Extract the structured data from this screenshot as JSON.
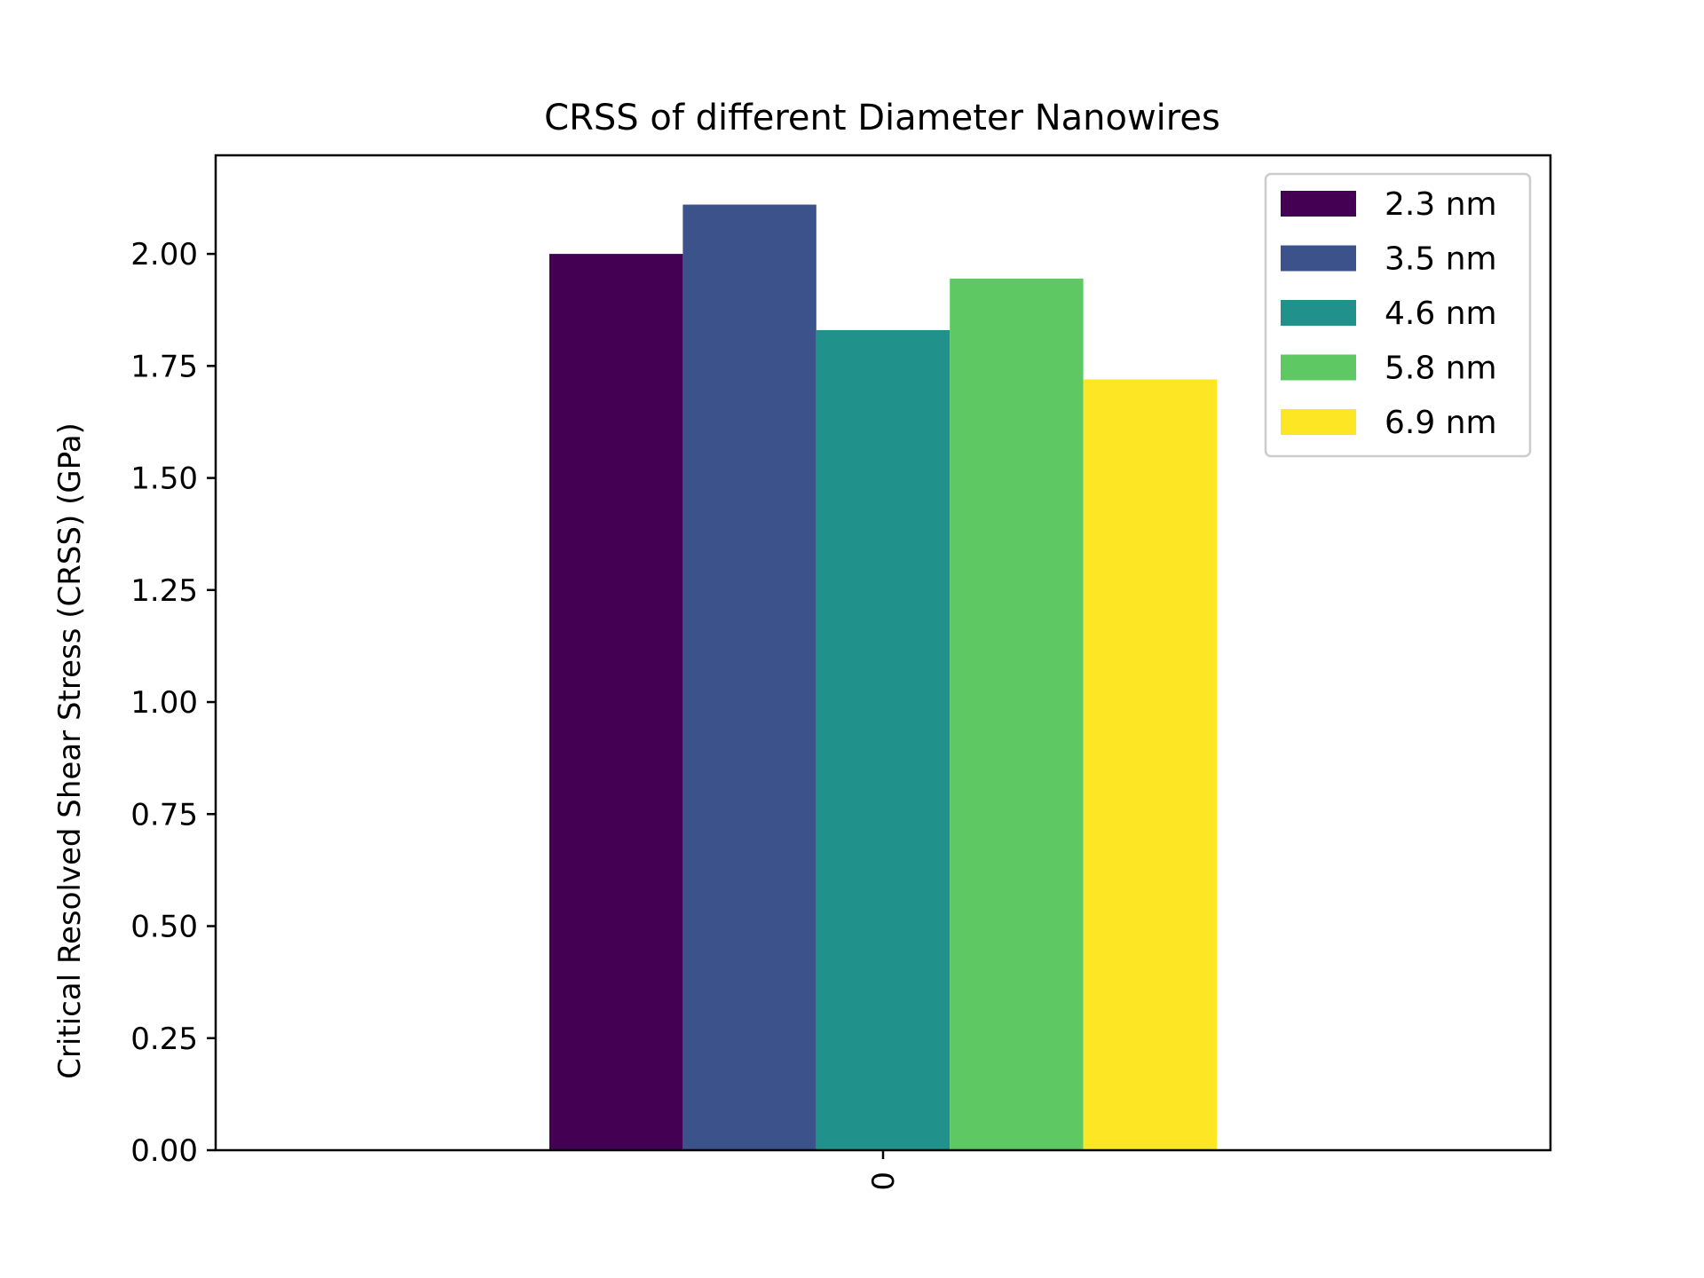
{
  "chart_data": {
    "type": "bar",
    "title": "CRSS of different Diameter Nanowires",
    "xlabel": "",
    "ylabel": "Critical Resolved Shear Stress (CRSS) (GPa)",
    "categories": [
      "0"
    ],
    "ylim": [
      0,
      2.22
    ],
    "yticks": [
      "0.00",
      "0.25",
      "0.50",
      "0.75",
      "1.00",
      "1.25",
      "1.50",
      "1.75",
      "2.00"
    ],
    "legend_position": "top-right",
    "grid": false,
    "series": [
      {
        "name": "2.3 nm",
        "values": [
          2.0
        ],
        "color": "#440154"
      },
      {
        "name": "3.5 nm",
        "values": [
          2.11
        ],
        "color": "#3b528b"
      },
      {
        "name": "4.6 nm",
        "values": [
          1.83
        ],
        "color": "#21918c"
      },
      {
        "name": "5.8 nm",
        "values": [
          1.945
        ],
        "color": "#5ec962"
      },
      {
        "name": "6.9 nm",
        "values": [
          1.72
        ],
        "color": "#fde725"
      }
    ]
  }
}
